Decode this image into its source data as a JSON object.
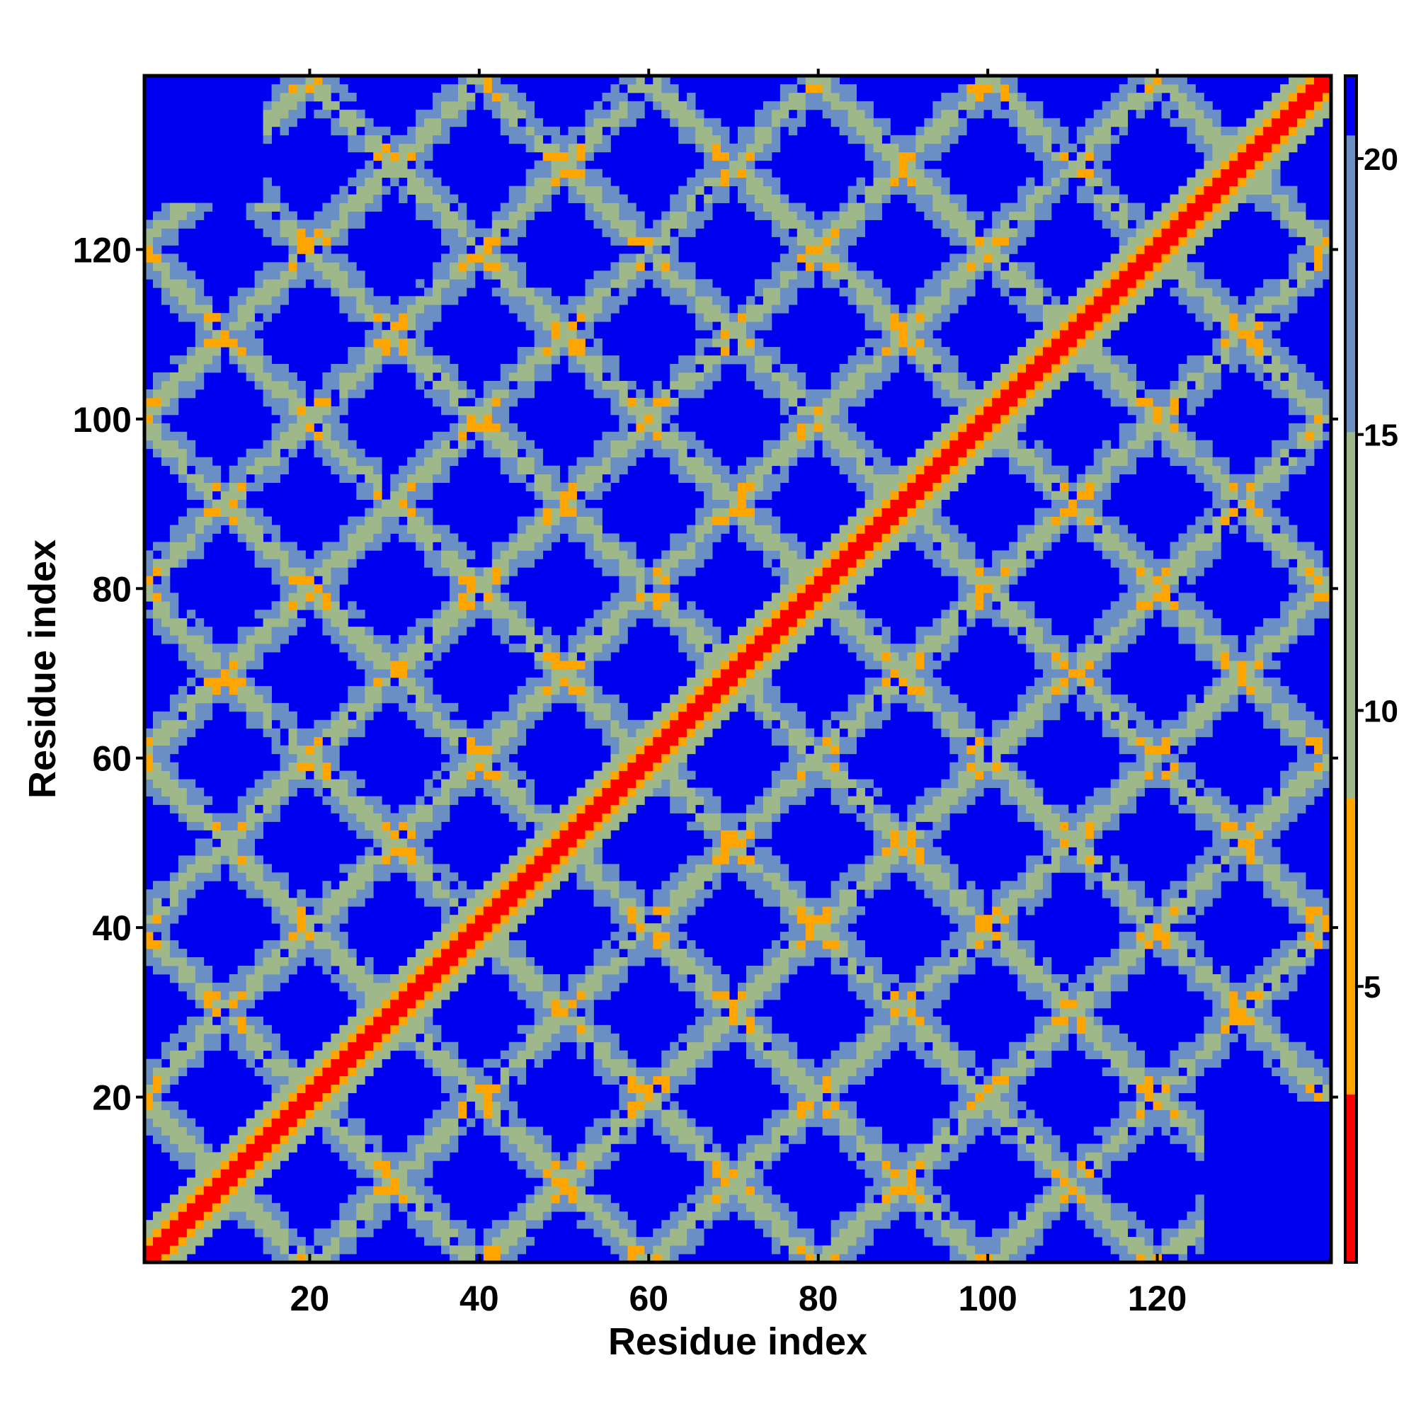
{
  "chart_data": {
    "type": "heatmap",
    "title": "",
    "xlabel": "Residue index",
    "ylabel": "Residue index",
    "n_residues": 140,
    "xlim": [
      1,
      140
    ],
    "ylim": [
      1,
      140
    ],
    "x_ticks": [
      20,
      40,
      60,
      80,
      100,
      120
    ],
    "y_ticks": [
      20,
      40,
      60,
      80,
      100,
      120
    ],
    "colorbar": {
      "ticks": [
        5,
        10,
        15,
        20
      ],
      "range": [
        0,
        21.5
      ],
      "placement": "right"
    },
    "colors": {
      "background": "#0000f0",
      "contact": "#ff0000",
      "near": "#ffa500",
      "mid": "#9fb88a",
      "far": "#6a8fc4"
    },
    "structure": {
      "diagonal_width_residues": 2,
      "grid_spacing_residues": 20,
      "description_of_bands": "anti-diagonal contact bands forming a lattice of rings"
    }
  }
}
